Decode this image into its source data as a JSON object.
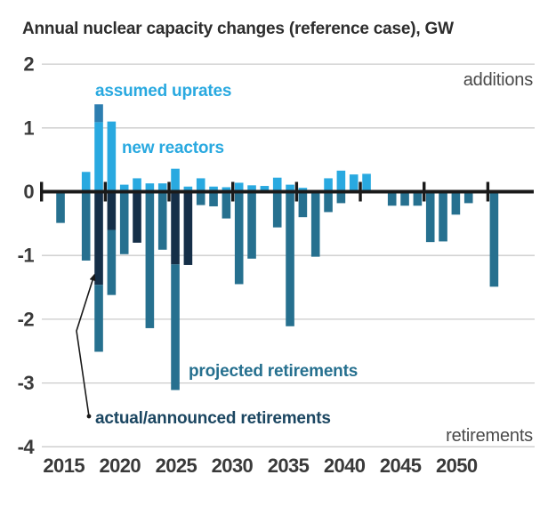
{
  "title": "Annual nuclear capacity changes (reference case), GW",
  "annotations": {
    "assumed_uprates": "assumed uprates",
    "new_reactors": "new reactors",
    "projected_retirements": "projected retirements",
    "actual_announced": "actual/announced retirements",
    "additions": "additions",
    "retirements": "retirements"
  },
  "colors": {
    "new_reactors": "#29A9E0",
    "assumed_uprates": "#2D7EB0",
    "projected_retirements": "#26708F",
    "actual_announced_retirements": "#152F48",
    "actual_announced_label": "#1B4661",
    "axis": "#1A1A1A",
    "gridline": "#CBCBCB",
    "title_text": "#2D2D2D",
    "axis_label_text": "#3A3A3A",
    "corner_label_text": "#4A4A4A"
  },
  "y_axis": {
    "ticks": [
      2,
      1,
      0,
      -1,
      -2,
      -3,
      -4
    ]
  },
  "x_axis": {
    "labels": [
      "2015",
      "2020",
      "2025",
      "2030",
      "2035",
      "2040",
      "2045",
      "2050"
    ]
  },
  "chart_data": {
    "type": "bar",
    "stacked": true,
    "unit": "GW",
    "title": "Annual nuclear capacity changes (reference case), GW",
    "ylim": [
      -4,
      2
    ],
    "y_gridlines": [
      2,
      1,
      0,
      -1,
      -2,
      -3,
      -4
    ],
    "legend_position": "inline-annotations",
    "years": [
      2015,
      2016,
      2017,
      2018,
      2019,
      2020,
      2021,
      2022,
      2023,
      2024,
      2025,
      2026,
      2027,
      2028,
      2029,
      2030,
      2031,
      2032,
      2033,
      2034,
      2035,
      2036,
      2037,
      2038,
      2039,
      2040,
      2041,
      2042,
      2043,
      2044,
      2045,
      2046,
      2047,
      2048,
      2049,
      2050
    ],
    "series": [
      {
        "name": "new reactors",
        "color_key": "new_reactors",
        "values": [
          0,
          0,
          0,
          0.31,
          1.09,
          1.1,
          0.11,
          0.21,
          0.13,
          0.13,
          0.36,
          0.08,
          0.21,
          0.08,
          0.07,
          0.14,
          0.1,
          0.09,
          0.22,
          0.11,
          0.06,
          0,
          0.21,
          0.33,
          0.27,
          0.28,
          0,
          0,
          0,
          0,
          0,
          0,
          0,
          0,
          0,
          0
        ]
      },
      {
        "name": "assumed uprates",
        "color_key": "assumed_uprates",
        "values": [
          0,
          0,
          0,
          0,
          0.28,
          0,
          0,
          0,
          0,
          0,
          0,
          0,
          0,
          0,
          0,
          0,
          0,
          0,
          0,
          0,
          0,
          0,
          0,
          0,
          0,
          0,
          0,
          0,
          0,
          0,
          0,
          0,
          0,
          0,
          0,
          0
        ]
      },
      {
        "name": "actual/announced retirements",
        "color_key": "actual_announced_retirements",
        "values": [
          0,
          0,
          0,
          0,
          -1.46,
          -0.6,
          0,
          -0.8,
          0,
          0,
          -1.14,
          -1.15,
          0,
          0,
          0,
          0,
          0,
          0,
          0,
          0,
          0,
          0,
          0,
          0,
          0,
          0,
          0,
          0,
          0,
          0,
          0,
          0,
          0,
          0,
          0,
          0
        ]
      },
      {
        "name": "projected retirements",
        "color_key": "projected_retirements",
        "values": [
          0,
          -0.49,
          0,
          -1.08,
          -1.05,
          -1.02,
          -0.98,
          0,
          -2.14,
          -0.91,
          -1.97,
          0,
          -0.21,
          -0.23,
          -0.42,
          -1.45,
          -1.05,
          0,
          -0.56,
          -2.11,
          -0.4,
          -1.02,
          -0.32,
          -0.18,
          0,
          0,
          0,
          -0.22,
          -0.22,
          -0.22,
          -0.79,
          -0.78,
          -0.36,
          -0.18,
          0,
          -1.49
        ]
      }
    ]
  }
}
